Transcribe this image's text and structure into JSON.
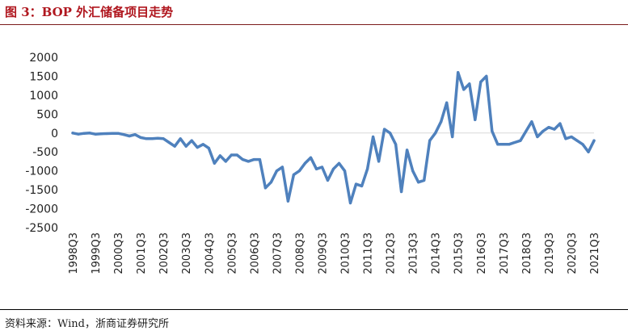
{
  "header": {
    "title": "图 3：BOP 外汇储备项目走势"
  },
  "footer": {
    "source": "资料来源：Wind，浙商证券研究所"
  },
  "chart_data": {
    "type": "line",
    "title": "",
    "xlabel": "",
    "ylabel": "",
    "ylim": [
      -2500,
      2000
    ],
    "yticks": [
      2000,
      1500,
      1000,
      500,
      0,
      -500,
      -1000,
      -1500,
      -2000,
      -2500
    ],
    "grid": false,
    "legend": "none",
    "line_color": "#4f81bd",
    "x": [
      "1998Q3",
      "1998Q4",
      "1999Q1",
      "1999Q2",
      "1999Q3",
      "1999Q4",
      "2000Q1",
      "2000Q2",
      "2000Q3",
      "2000Q4",
      "2001Q1",
      "2001Q2",
      "2001Q3",
      "2001Q4",
      "2002Q1",
      "2002Q2",
      "2002Q3",
      "2002Q4",
      "2003Q1",
      "2003Q2",
      "2003Q3",
      "2003Q4",
      "2004Q1",
      "2004Q2",
      "2004Q3",
      "2004Q4",
      "2005Q1",
      "2005Q2",
      "2005Q3",
      "2005Q4",
      "2006Q1",
      "2006Q2",
      "2006Q3",
      "2006Q4",
      "2007Q1",
      "2007Q2",
      "2007Q3",
      "2007Q4",
      "2008Q1",
      "2008Q2",
      "2008Q3",
      "2008Q4",
      "2009Q1",
      "2009Q2",
      "2009Q3",
      "2009Q4",
      "2010Q1",
      "2010Q2",
      "2010Q3",
      "2010Q4",
      "2011Q1",
      "2011Q2",
      "2011Q3",
      "2011Q4",
      "2012Q1",
      "2012Q2",
      "2012Q3",
      "2012Q4",
      "2013Q1",
      "2013Q2",
      "2013Q3",
      "2013Q4",
      "2014Q1",
      "2014Q2",
      "2014Q3",
      "2014Q4",
      "2015Q1",
      "2015Q2",
      "2015Q3",
      "2015Q4",
      "2016Q1",
      "2016Q2",
      "2016Q3",
      "2016Q4",
      "2017Q1",
      "2017Q2",
      "2017Q3",
      "2017Q4",
      "2018Q1",
      "2018Q2",
      "2018Q3",
      "2018Q4",
      "2019Q1",
      "2019Q2",
      "2019Q3",
      "2019Q4",
      "2020Q1",
      "2020Q2",
      "2020Q3",
      "2020Q4",
      "2021Q1",
      "2021Q2",
      "2021Q3"
    ],
    "tick_labels": [
      "1998Q3",
      "1999Q3",
      "2000Q3",
      "2001Q3",
      "2002Q3",
      "2003Q3",
      "2004Q3",
      "2005Q3",
      "2006Q3",
      "2007Q3",
      "2008Q3",
      "2009Q3",
      "2010Q3",
      "2011Q3",
      "2012Q3",
      "2013Q3",
      "2014Q3",
      "2015Q3",
      "2016Q3",
      "2017Q3",
      "2018Q3",
      "2019Q3",
      "2020Q3",
      "2021Q3"
    ],
    "series": [
      {
        "values": [
          0,
          -30,
          -10,
          0,
          -30,
          -20,
          -15,
          -10,
          -10,
          -40,
          -80,
          -40,
          -120,
          -150,
          -150,
          -140,
          -150,
          -250,
          -350,
          -150,
          -350,
          -200,
          -380,
          -300,
          -400,
          -800,
          -600,
          -750,
          -580,
          -580,
          -700,
          -750,
          -700,
          -700,
          -1450,
          -1300,
          -1000,
          -900,
          -1800,
          -1100,
          -1000,
          -800,
          -650,
          -950,
          -900,
          -1250,
          -950,
          -800,
          -1000,
          -1850,
          -1350,
          -1400,
          -950,
          -100,
          -750,
          100,
          0,
          -300,
          -1550,
          -450,
          -1000,
          -1300,
          -1250,
          -200,
          0,
          300,
          800,
          -100,
          1600,
          1150,
          1300,
          350,
          1350,
          1500,
          50,
          -300,
          -300,
          -300,
          -250,
          -200,
          50,
          300,
          -100,
          50,
          150,
          100,
          250,
          -150,
          -100,
          -200,
          -300,
          -500,
          -200
        ]
      }
    ]
  }
}
